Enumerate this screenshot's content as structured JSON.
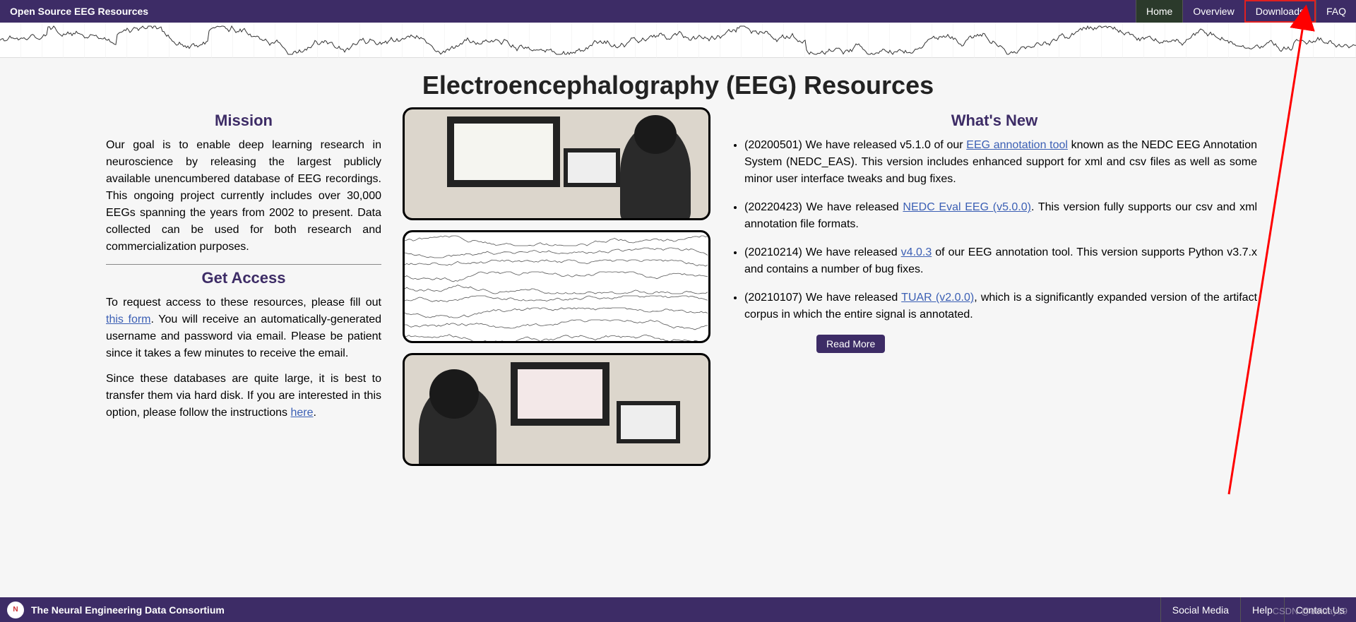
{
  "colors": {
    "nav_bg": "#3d2c66",
    "nav_active_bg": "#2b3a2b",
    "highlight_border": "#e02020",
    "link": "#3b5fb4",
    "page_bg": "#f6f6f6",
    "arrow": "#ff0000"
  },
  "topbar": {
    "title": "Open Source EEG Resources",
    "nav": [
      {
        "label": "Home",
        "active": true
      },
      {
        "label": "Overview"
      },
      {
        "label": "Downloads",
        "highlight": true
      },
      {
        "label": "FAQ"
      }
    ]
  },
  "page_title": "Electroencephalography (EEG) Resources",
  "mission": {
    "heading": "Mission",
    "body": "Our goal is to enable deep learning research in neuroscience by releasing the largest publicly available unencumbered database of EEG recordings. This ongoing project currently includes over 30,000 EEGs spanning the years from 2002 to present. Data collected can be used for both research and commercialization purposes."
  },
  "access": {
    "heading": "Get Access",
    "p1_pre": "To request access to these resources, please fill out ",
    "p1_link": "this form",
    "p1_post": ". You will receive an automatically-generated username and password via email. Please be patient since it takes a few minutes to receive the email.",
    "p2_pre": "Since these databases are quite large, it is best to transfer them via hard disk. If you are interested in this option, please follow the instructions ",
    "p2_link": "here",
    "p2_post": "."
  },
  "whatsnew": {
    "heading": "What's New",
    "items": [
      {
        "pre": "(20200501) We have released v5.1.0 of our ",
        "link": "EEG annotation tool",
        "post": " known as the NEDC EEG Annotation System (NEDC_EAS). This version includes enhanced support for xml and csv files as well as some minor user interface tweaks and bug fixes."
      },
      {
        "pre": "(20220423) We have released ",
        "link": "NEDC Eval EEG (v5.0.0)",
        "post": ". This version fully supports our csv and xml annotation file formats."
      },
      {
        "pre": "(20210214) We have released ",
        "link": "v4.0.3",
        "post": " of our EEG annotation tool. This version supports Python v3.7.x and contains a number of bug fixes."
      },
      {
        "pre": "(20210107) We have released ",
        "link": "TUAR (v2.0.0)",
        "post": ", which is a significantly expanded version of the artifact corpus in which the entire signal is annotated."
      }
    ],
    "read_more": "Read More"
  },
  "footer": {
    "org": "The Neural Engineering Data Consortium",
    "links": [
      "Social Media",
      "Help",
      "Contact Us"
    ]
  },
  "watermark": "CSDN @ebiuay19"
}
